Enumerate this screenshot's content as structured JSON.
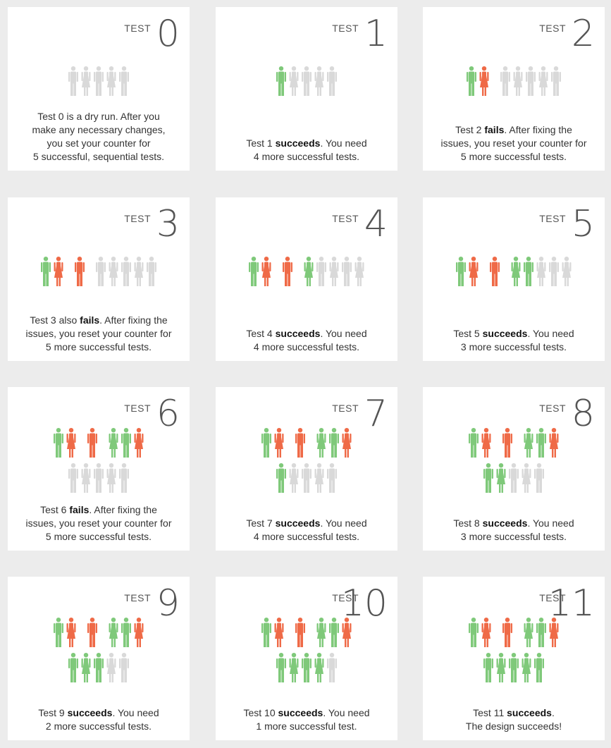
{
  "label": "TEST",
  "colors": {
    "pass": "#7fc97a",
    "fail": "#ef6a47",
    "pending": "#d9d9d9"
  },
  "cards": [
    {
      "num": "0",
      "rows": [
        "MWMWM"
      ],
      "caption": [
        [
          "Test 0 is a dry run. After you"
        ],
        [
          "make any necessary changes,"
        ],
        [
          "you set your counter for"
        ],
        [
          "5 successful, sequential tests."
        ]
      ]
    },
    {
      "num": "1",
      "rows": [
        "mWMWM"
      ],
      "caption": [
        [
          "Test 1 ",
          "succeeds",
          ". You need"
        ],
        [
          "4 more successful tests."
        ]
      ]
    },
    {
      "num": "2",
      "rows": [
        "mv MWMWM"
      ],
      "caption": [
        [
          "Test 2 ",
          "fails",
          ". After fixing the"
        ],
        [
          "issues, you reset your counter for"
        ],
        [
          "5 more successful tests."
        ]
      ]
    },
    {
      "num": "3",
      "rows": [
        "mv u MWMWM"
      ],
      "caption": [
        [
          "Test 3 also ",
          "fails",
          ". After fixing the"
        ],
        [
          "issues, you reset your counter for"
        ],
        [
          "5 more successful tests."
        ]
      ]
    },
    {
      "num": "4",
      "rows": [
        "mv u wMWMW"
      ],
      "caption": [
        [
          "Test 4 ",
          "succeeds",
          ". You need"
        ],
        [
          "4 more successful tests."
        ]
      ]
    },
    {
      "num": "5",
      "rows": [
        "mv u wmWMW"
      ],
      "caption": [
        [
          "Test 5 ",
          "succeeds",
          ". You need"
        ],
        [
          "3 more successful tests."
        ]
      ]
    },
    {
      "num": "6",
      "rows": [
        "mv u wmv",
        "MWMWM"
      ],
      "caption": [
        [
          "Test 6 ",
          "fails",
          ". After fixing the"
        ],
        [
          "issues, you reset your counter for"
        ],
        [
          "5 more successful tests."
        ]
      ]
    },
    {
      "num": "7",
      "rows": [
        "mv u wmv",
        "mWMWM"
      ],
      "caption": [
        [
          "Test 7 ",
          "succeeds",
          ". You need"
        ],
        [
          "4 more successful tests."
        ]
      ]
    },
    {
      "num": "8",
      "rows": [
        "mv u wmv",
        "mwMWM"
      ],
      "caption": [
        [
          "Test 8 ",
          "succeeds",
          ". You need"
        ],
        [
          "3 more successful tests."
        ]
      ]
    },
    {
      "num": "9",
      "rows": [
        "mv u wmv",
        "mwmWM"
      ],
      "caption": [
        [
          "Test 9 ",
          "succeeds",
          ". You need"
        ],
        [
          "2 more successful tests."
        ]
      ]
    },
    {
      "num": "10",
      "rows": [
        "mv u wmv",
        "mwmwM"
      ],
      "caption": [
        [
          "Test 10 ",
          "succeeds",
          ". You need"
        ],
        [
          "1 more successful test."
        ]
      ]
    },
    {
      "num": "11",
      "rows": [
        "mv u wmv",
        "mwmwm"
      ],
      "caption": [
        [
          "Test 11 ",
          "succeeds",
          "."
        ],
        [
          "The design succeeds!"
        ]
      ]
    }
  ]
}
